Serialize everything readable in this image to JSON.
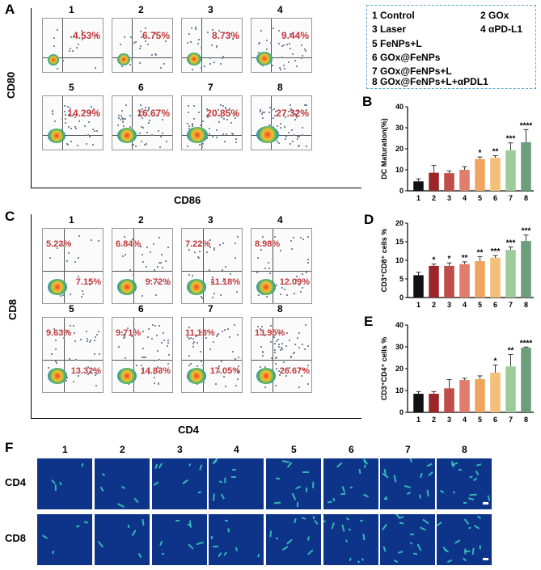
{
  "panels": {
    "A": {
      "label": "A",
      "y_axis": "CD80",
      "x_axis": "CD86",
      "plots": [
        {
          "num": "1",
          "pct": "4.53%"
        },
        {
          "num": "2",
          "pct": "6.75%"
        },
        {
          "num": "3",
          "pct": "8.73%"
        },
        {
          "num": "4",
          "pct": "9.44%"
        },
        {
          "num": "5",
          "pct": "14.29%"
        },
        {
          "num": "6",
          "pct": "16.67%"
        },
        {
          "num": "7",
          "pct": "20.85%"
        },
        {
          "num": "8",
          "pct": "27.32%"
        }
      ]
    },
    "C": {
      "label": "C",
      "y_axis": "CD8",
      "x_axis": "CD4",
      "plots": [
        {
          "num": "1",
          "top": "5.23%",
          "bottom": "7.15%"
        },
        {
          "num": "2",
          "top": "6.84%",
          "bottom": "9.72%"
        },
        {
          "num": "3",
          "top": "7.22%",
          "bottom": "11.18%"
        },
        {
          "num": "4",
          "top": "8.98%",
          "bottom": "12.09%"
        },
        {
          "num": "5",
          "top": "9.63%",
          "bottom": "13.32%"
        },
        {
          "num": "6",
          "top": "9.71%",
          "bottom": "14.83%"
        },
        {
          "num": "7",
          "top": "11.13%",
          "bottom": "17.05%"
        },
        {
          "num": "8",
          "top": "13.95%",
          "bottom": "26.67%"
        }
      ]
    },
    "F": {
      "label": "F",
      "rows": [
        "CD4",
        "CD8"
      ],
      "cols": [
        "1",
        "2",
        "3",
        "4",
        "5",
        "6",
        "7",
        "8"
      ]
    },
    "B": {
      "label": "B"
    },
    "D": {
      "label": "D"
    },
    "E": {
      "label": "E"
    }
  },
  "legend": {
    "items": [
      "1 Control",
      "2 GOx",
      "3 Laser",
      "4 αPD-L1",
      "5 FeNPs+L",
      "6 GOx@FeNPs",
      "7 GOx@FeNPs+L",
      "8 GOx@FeNPs+L+αPDL1"
    ]
  },
  "colors": [
    "#111111",
    "#9b2528",
    "#bf4d49",
    "#e07d6b",
    "#efa45f",
    "#f4c078",
    "#9ecb9a",
    "#6d9e7b"
  ],
  "chart_data": [
    {
      "type": "bar",
      "title": "",
      "ylabel": "DC Maturation(%)",
      "categories": [
        "1",
        "2",
        "3",
        "4",
        "5",
        "6",
        "7",
        "8"
      ],
      "values": [
        4.5,
        8.6,
        8.4,
        10.0,
        15.1,
        15.7,
        19.3,
        23.1
      ],
      "errors": [
        1.2,
        3.5,
        1.0,
        1.5,
        1.0,
        1.0,
        3.5,
        6.0
      ],
      "significance": [
        "",
        "",
        "",
        "",
        "*",
        "**",
        "***",
        "****"
      ],
      "ylim": [
        0,
        40
      ],
      "yticks": [
        0,
        10,
        20,
        30,
        40
      ]
    },
    {
      "type": "bar",
      "title": "",
      "ylabel": "CD3⁺CD8⁺ cells %",
      "categories": [
        "1",
        "2",
        "3",
        "4",
        "5",
        "6",
        "7",
        "8"
      ],
      "values": [
        6.0,
        8.5,
        8.5,
        9.0,
        9.8,
        10.7,
        12.8,
        15.2
      ],
      "errors": [
        0.8,
        0.5,
        0.8,
        0.6,
        1.2,
        0.6,
        0.8,
        1.6
      ],
      "significance": [
        "",
        "*",
        "*",
        "**",
        "**",
        "***",
        "***",
        "***"
      ],
      "ylim": [
        0,
        20
      ],
      "yticks": [
        0,
        5,
        10,
        15,
        20
      ]
    },
    {
      "type": "bar",
      "title": "",
      "ylabel": "CD3⁺CD4⁺ cells %",
      "categories": [
        "1",
        "2",
        "3",
        "4",
        "5",
        "6",
        "7",
        "8"
      ],
      "values": [
        8.5,
        8.5,
        11.0,
        14.8,
        15.2,
        18.2,
        21.0,
        29.6
      ],
      "errors": [
        1.0,
        1.0,
        4.0,
        0.8,
        1.5,
        3.5,
        5.5,
        0.3
      ],
      "significance": [
        "",
        "",
        "",
        "",
        "",
        "*",
        "**",
        "****"
      ],
      "ylim": [
        0,
        40
      ],
      "yticks": [
        0,
        10,
        20,
        30,
        40
      ]
    }
  ]
}
